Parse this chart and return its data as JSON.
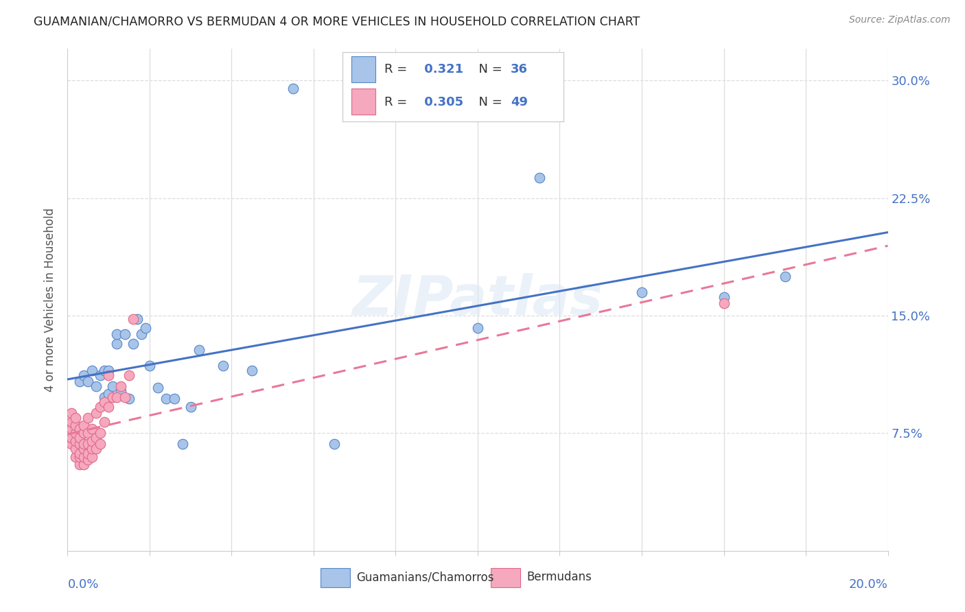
{
  "title": "GUAMANIAN/CHAMORRO VS BERMUDAN 4 OR MORE VEHICLES IN HOUSEHOLD CORRELATION CHART",
  "source": "Source: ZipAtlas.com",
  "ylabel": "4 or more Vehicles in Household",
  "ytick_values": [
    0.075,
    0.15,
    0.225,
    0.3
  ],
  "ytick_labels": [
    "7.5%",
    "15.0%",
    "22.5%",
    "30.0%"
  ],
  "xlim": [
    0.0,
    0.2
  ],
  "ylim": [
    0.0,
    0.32
  ],
  "guamanian_R": 0.321,
  "guamanian_N": 36,
  "bermudan_R": 0.305,
  "bermudan_N": 49,
  "guamanian_color": "#a8c4e8",
  "bermudan_color": "#f5a8be",
  "guamanian_edge_color": "#5585c8",
  "bermudan_edge_color": "#e06888",
  "guamanian_line_color": "#4472c4",
  "bermudan_line_color": "#e87898",
  "watermark": "ZIPatlas",
  "legend_label_guamanian": "Guamanians/Chamorros",
  "legend_label_bermudan": "Bermudans",
  "guamanian_x": [
    0.003,
    0.004,
    0.005,
    0.006,
    0.007,
    0.008,
    0.009,
    0.009,
    0.01,
    0.01,
    0.011,
    0.012,
    0.012,
    0.013,
    0.014,
    0.015,
    0.016,
    0.017,
    0.018,
    0.019,
    0.02,
    0.022,
    0.024,
    0.026,
    0.028,
    0.03,
    0.032,
    0.038,
    0.045,
    0.055,
    0.065,
    0.1,
    0.115,
    0.14,
    0.16,
    0.175
  ],
  "guamanian_y": [
    0.108,
    0.112,
    0.108,
    0.115,
    0.105,
    0.112,
    0.098,
    0.115,
    0.1,
    0.115,
    0.105,
    0.132,
    0.138,
    0.102,
    0.138,
    0.097,
    0.132,
    0.148,
    0.138,
    0.142,
    0.118,
    0.104,
    0.097,
    0.097,
    0.068,
    0.092,
    0.128,
    0.118,
    0.115,
    0.295,
    0.068,
    0.142,
    0.238,
    0.165,
    0.162,
    0.175
  ],
  "bermudan_x": [
    0.001,
    0.001,
    0.001,
    0.001,
    0.001,
    0.002,
    0.002,
    0.002,
    0.002,
    0.002,
    0.002,
    0.003,
    0.003,
    0.003,
    0.003,
    0.003,
    0.003,
    0.004,
    0.004,
    0.004,
    0.004,
    0.004,
    0.004,
    0.005,
    0.005,
    0.005,
    0.005,
    0.005,
    0.006,
    0.006,
    0.006,
    0.006,
    0.007,
    0.007,
    0.007,
    0.008,
    0.008,
    0.008,
    0.009,
    0.009,
    0.01,
    0.01,
    0.011,
    0.012,
    0.013,
    0.014,
    0.015,
    0.016,
    0.16
  ],
  "bermudan_y": [
    0.068,
    0.072,
    0.078,
    0.082,
    0.088,
    0.06,
    0.065,
    0.07,
    0.075,
    0.08,
    0.085,
    0.055,
    0.06,
    0.062,
    0.068,
    0.072,
    0.078,
    0.055,
    0.06,
    0.065,
    0.068,
    0.075,
    0.08,
    0.058,
    0.062,
    0.068,
    0.075,
    0.085,
    0.06,
    0.065,
    0.07,
    0.078,
    0.065,
    0.072,
    0.088,
    0.068,
    0.075,
    0.092,
    0.082,
    0.095,
    0.092,
    0.112,
    0.098,
    0.098,
    0.105,
    0.098,
    0.112,
    0.148,
    0.158
  ],
  "tick_color": "#4472c4",
  "grid_color": "#dddddd",
  "spine_color": "#cccccc"
}
